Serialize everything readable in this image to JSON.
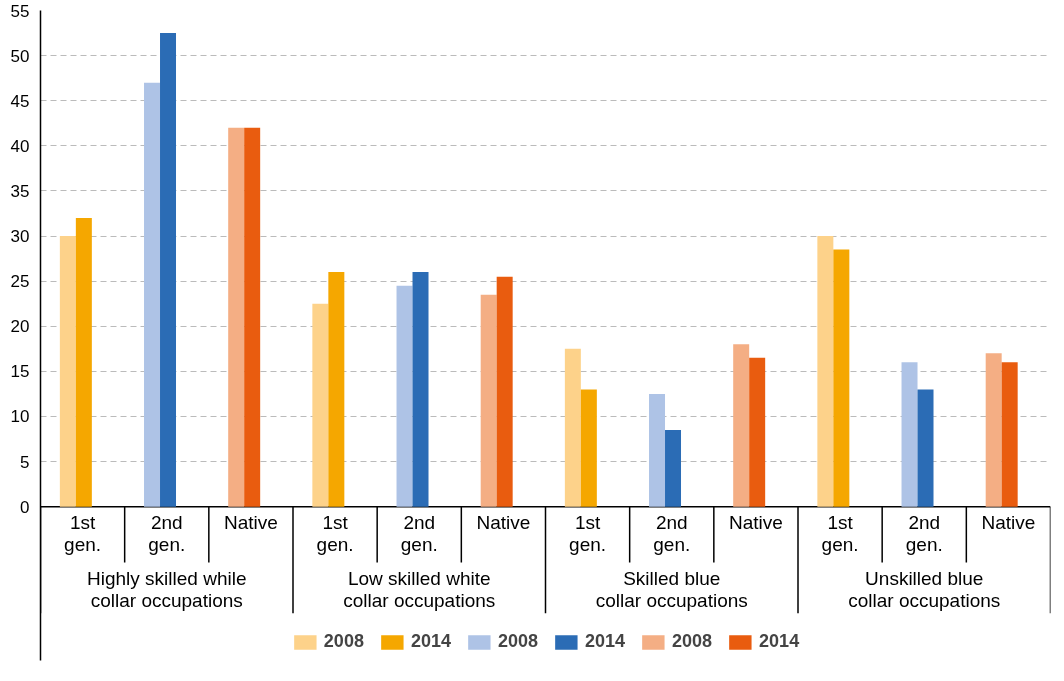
{
  "chart_data": {
    "type": "bar",
    "categories": [
      "1st\ngen.",
      "2nd\ngen.",
      "Native",
      "1st\ngen.",
      "2nd\ngen.",
      "Native",
      "1st\ngen.",
      "2nd\ngen.",
      "Native",
      "1st\ngen.",
      "2nd\ngen.",
      "Native"
    ],
    "series": [
      {
        "name": "2008",
        "color": "#fdd28a",
        "values": [
          30,
          null,
          null,
          22.5,
          null,
          null,
          17.5,
          null,
          null,
          30,
          null,
          null
        ]
      },
      {
        "name": "2014",
        "color": "#f5a700",
        "values": [
          32,
          null,
          null,
          26,
          null,
          null,
          13,
          null,
          null,
          28.5,
          null,
          null
        ]
      },
      {
        "name": "2008",
        "color": "#aec3e6",
        "values": [
          null,
          47,
          null,
          null,
          24.5,
          null,
          null,
          12.5,
          null,
          null,
          16,
          null
        ]
      },
      {
        "name": "2014",
        "color": "#2b6cb5",
        "values": [
          null,
          52.5,
          null,
          null,
          26,
          null,
          null,
          8.5,
          null,
          null,
          13,
          null
        ]
      },
      {
        "name": "2008",
        "color": "#f4ae84",
        "values": [
          null,
          null,
          42,
          null,
          null,
          23.5,
          null,
          null,
          18,
          null,
          null,
          17
        ]
      },
      {
        "name": "2014",
        "color": "#e95c0f",
        "values": [
          null,
          null,
          42,
          null,
          null,
          25.5,
          null,
          null,
          16.5,
          null,
          null,
          16
        ]
      }
    ],
    "annotations": [
      "Highly skilled while\ncollar occupations",
      "Low skilled white\ncollar occupations",
      "Skilled blue\ncollar occupations",
      "Unskilled blue\ncollar occupations"
    ],
    "ylim": [
      0,
      55
    ],
    "yticks": [
      0,
      5,
      10,
      15,
      20,
      25,
      30,
      35,
      40,
      45,
      50,
      55
    ],
    "grid": "y",
    "legend": "bottom"
  }
}
